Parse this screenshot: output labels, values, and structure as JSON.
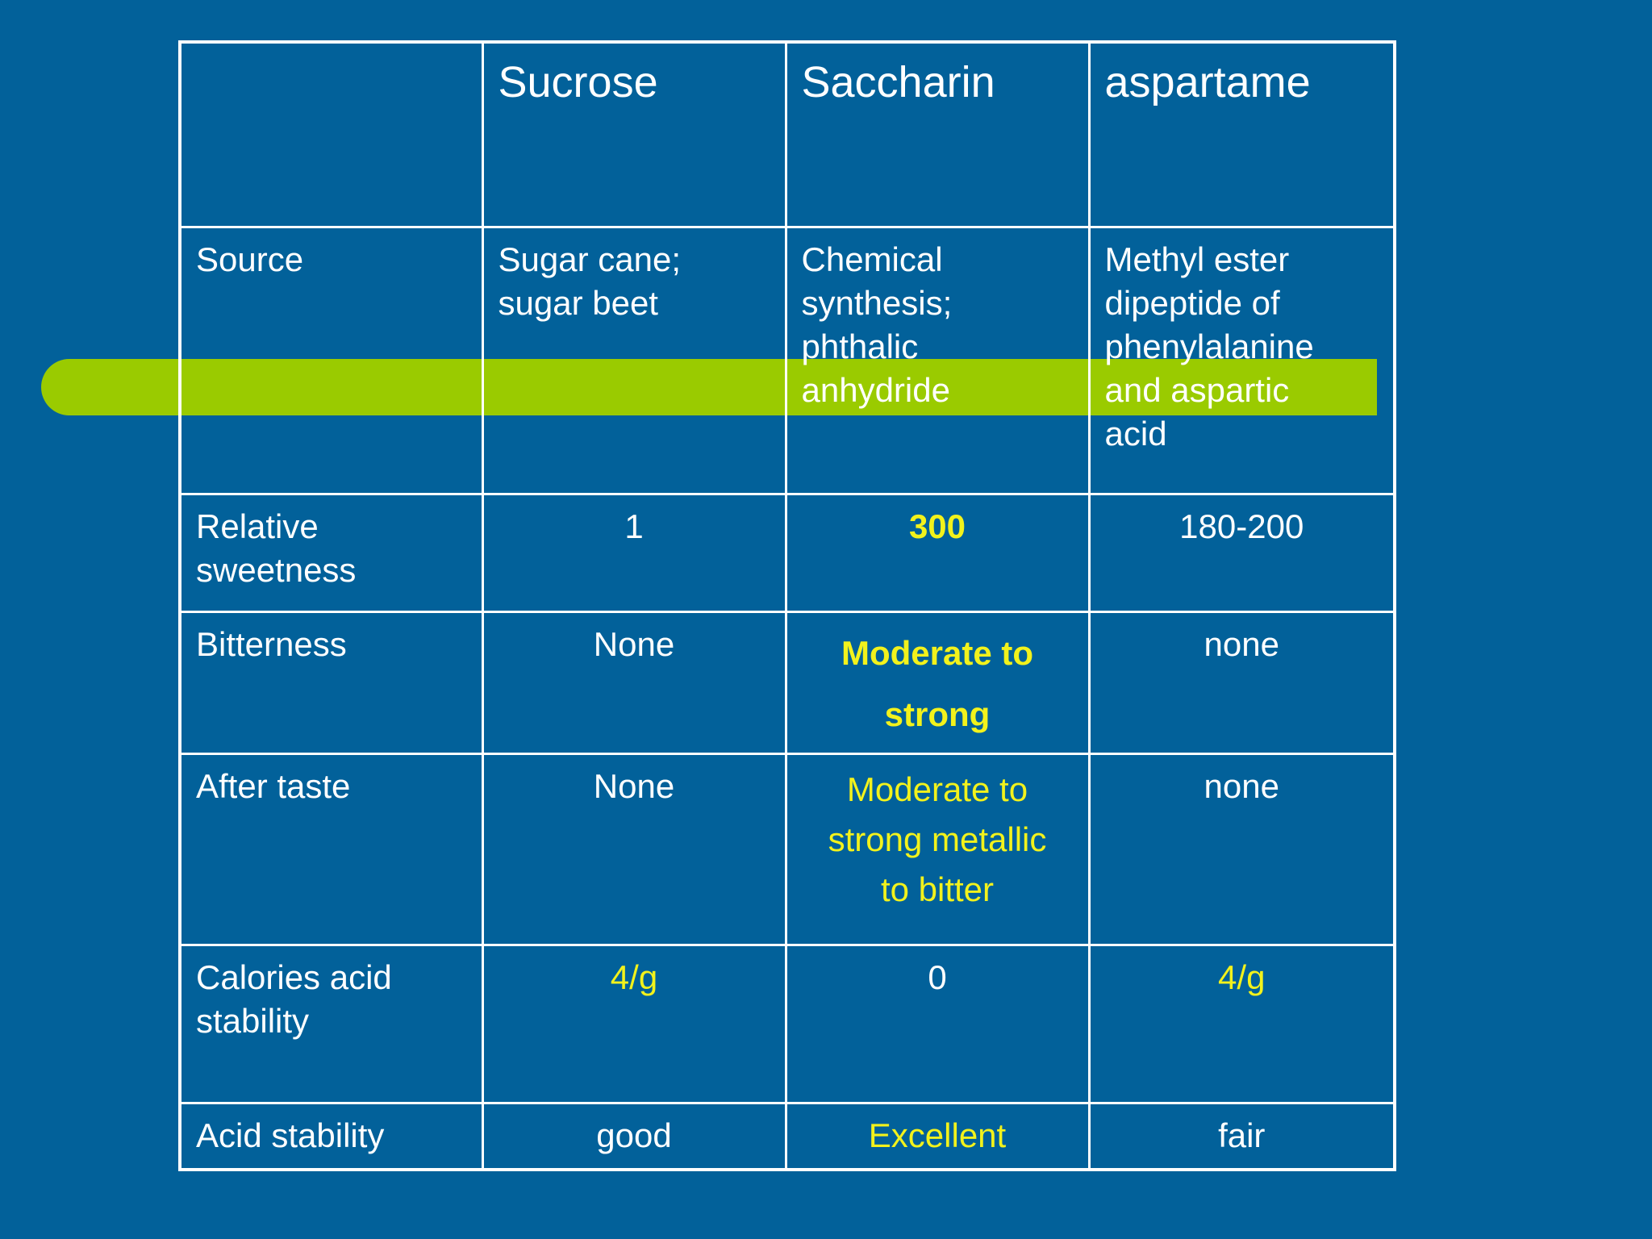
{
  "colors": {
    "background": "#02619a",
    "accent_bar": "#9acb00",
    "highlight_text": "#f2f21c",
    "grid": "#ffffff"
  },
  "table": {
    "columns": [
      "",
      "Sucrose",
      "Saccharin",
      "aspartame"
    ],
    "rows": [
      {
        "label": "Source",
        "values": [
          "Sugar cane;\nsugar beet",
          "Chemical\nsynthesis;\nphthalic\nanhydride",
          "Methyl ester\ndipeptide of\nphenylalanine\nand aspartic\nacid"
        ]
      },
      {
        "label": "Relative\nsweetness",
        "values": [
          "1",
          "300",
          "180-200"
        ]
      },
      {
        "label": "Bitterness",
        "values": [
          "None",
          "Moderate to\nstrong",
          "none"
        ]
      },
      {
        "label": "After taste",
        "values": [
          "None",
          "Moderate to\nstrong  metallic\nto bitter",
          "none"
        ]
      },
      {
        "label": "Calories acid\nstability",
        "values": [
          "4/g",
          "0",
          "4/g"
        ]
      },
      {
        "label": "Acid stability",
        "values": [
          "good",
          "Excellent",
          "fair"
        ]
      }
    ]
  }
}
